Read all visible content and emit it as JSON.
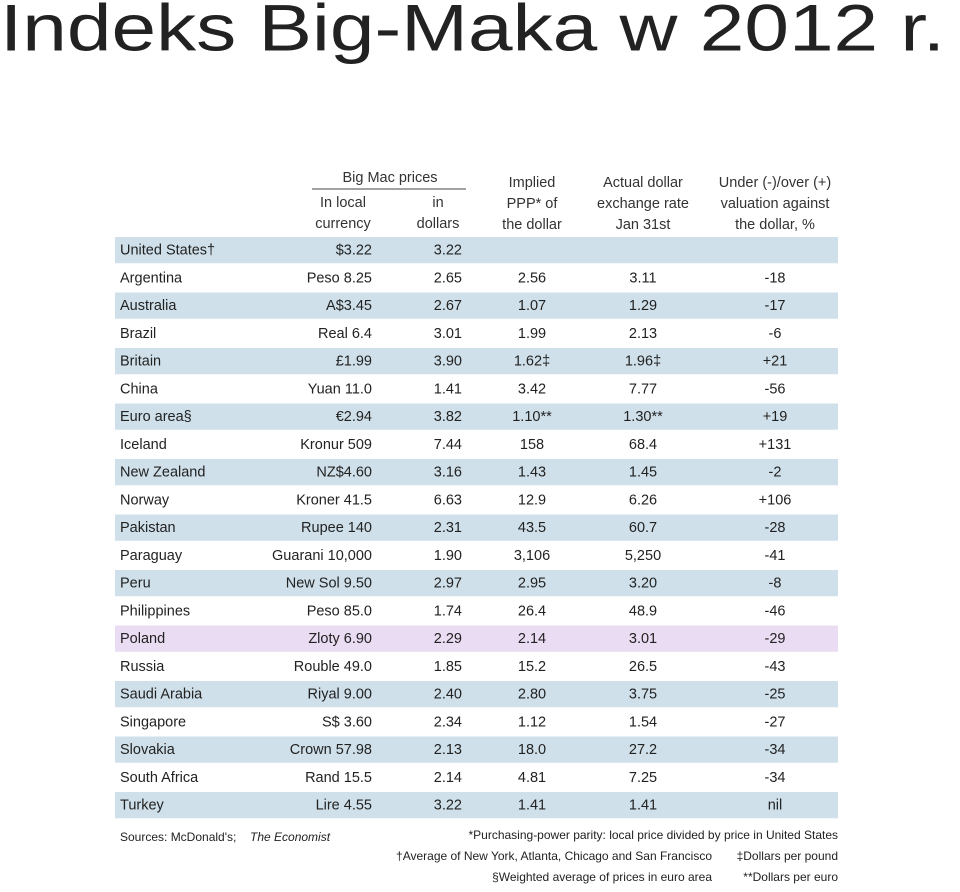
{
  "title": "Indeks Big-Maka w 2012 r.",
  "table": {
    "group_header": "Big Mac prices",
    "headers": [
      [
        "In local",
        "currency"
      ],
      [
        "in",
        "dollars"
      ],
      [
        "Implied",
        "PPP* of",
        "the dollar"
      ],
      [
        "Actual dollar",
        "exchange rate",
        "Jan 31st"
      ],
      [
        "Under (-)/over (+)",
        "valuation against",
        "the dollar, %"
      ]
    ],
    "rows": [
      [
        "United States†",
        "$3.22",
        "3.22"
      ],
      [
        "Argentina",
        "Peso 8.25",
        "2.65",
        "2.56",
        "3.11",
        "-18"
      ],
      [
        "Australia",
        "A$3.45",
        "2.67",
        "1.07",
        "1.29",
        "-17"
      ],
      [
        "Brazil",
        "Real 6.4",
        "3.01",
        "1.99",
        "2.13",
        "-6"
      ],
      [
        "Britain",
        "£1.99",
        "3.90",
        "1.62‡",
        "1.96‡",
        "+21"
      ],
      [
        "China",
        "Yuan 11.0",
        "1.41",
        "3.42",
        "7.77",
        "-56"
      ],
      [
        "Euro area§",
        "€2.94",
        "3.82",
        "1.10**",
        "1.30**",
        "+19"
      ],
      [
        "Iceland",
        "Kronur 509",
        "7.44",
        "158",
        "68.4",
        "+131"
      ],
      [
        "New Zealand",
        "NZ$4.60",
        "3.16",
        "1.43",
        "1.45",
        "-2"
      ],
      [
        "Norway",
        "Kroner 41.5",
        "6.63",
        "12.9",
        "6.26",
        "+106"
      ],
      [
        "Pakistan",
        "Rupee 140",
        "2.31",
        "43.5",
        "60.7",
        "-28"
      ],
      [
        "Paraguay",
        "Guarani 10,000",
        "1.90",
        "3,106",
        "5,250",
        "-41"
      ],
      [
        "Peru",
        "New Sol 9.50",
        "2.97",
        "2.95",
        "3.20",
        "-8"
      ],
      [
        "Philippines",
        "Peso 85.0",
        "1.74",
        "26.4",
        "48.9",
        "-46"
      ],
      [
        "Poland",
        "Zloty 6.90",
        "2.29",
        "2.14",
        "3.01",
        "-29"
      ],
      [
        "Russia",
        "Rouble 49.0",
        "1.85",
        "15.2",
        "26.5",
        "-43"
      ],
      [
        "Saudi Arabia",
        "Riyal 9.00",
        "2.40",
        "2.80",
        "3.75",
        "-25"
      ],
      [
        "Singapore",
        "S$ 3.60",
        "2.34",
        "1.12",
        "1.54",
        "-27"
      ],
      [
        "Slovakia",
        "Crown 57.98",
        "2.13",
        "18.0",
        "27.2",
        "-34"
      ],
      [
        "South Africa",
        "Rand 15.5",
        "2.14",
        "4.81",
        "7.25",
        "-34"
      ],
      [
        "Turkey",
        "Lire 4.55",
        "3.22",
        "1.41",
        "1.41",
        "nil"
      ]
    ],
    "highlight_row": 14
  },
  "sources": [
    "Sources: McDonald's;",
    "The Economist"
  ],
  "notes": [
    "*Purchasing-power parity: local price divided by price in United States",
    "†Average of New York, Atlanta, Chicago and San Francisco",
    "‡Dollars per pound",
    "§Weighted average of prices in euro area",
    "**Dollars per euro"
  ]
}
